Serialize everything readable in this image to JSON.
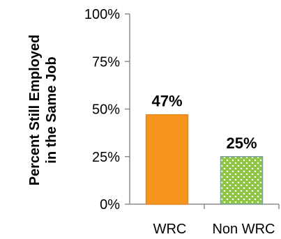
{
  "chart_data": {
    "type": "bar",
    "title": "",
    "xlabel": "",
    "ylabel_lines": [
      "Percent Still Employed",
      "in the Same Job"
    ],
    "ylim": [
      0,
      100
    ],
    "yticks": [
      "0%",
      "25%",
      "50%",
      "75%",
      "100%"
    ],
    "ytick_values": [
      0,
      25,
      50,
      75,
      100
    ],
    "categories": [
      "WRC",
      "Non WRC"
    ],
    "values": [
      47,
      25
    ],
    "data_labels": [
      "47%",
      "25%"
    ],
    "bar_colors": [
      "#F7941D",
      "#8DC63F"
    ],
    "bar_patterns": [
      "solid",
      "dotted"
    ],
    "grid": false
  }
}
